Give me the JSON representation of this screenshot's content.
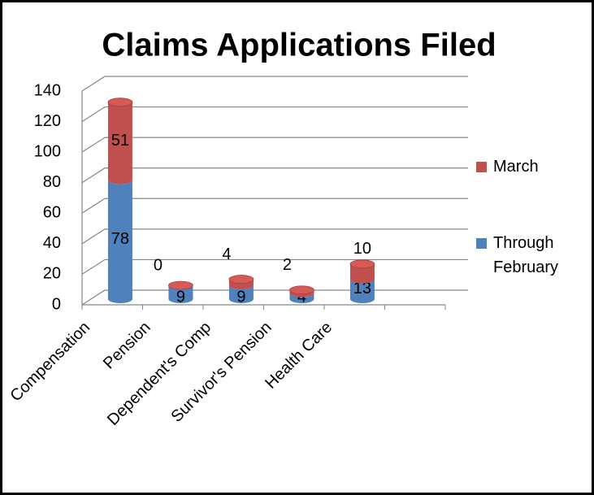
{
  "chart_data": {
    "type": "bar",
    "title": "Claims Applications Filed",
    "categories": [
      "Compensation",
      "Pension",
      "Dependent's Comp",
      "Survivor's Pension",
      "Health Care",
      null
    ],
    "series": [
      {
        "name": "Through February",
        "color": "#4f81bd",
        "values": [
          78,
          9,
          9,
          4,
          13,
          null
        ]
      },
      {
        "name": "March",
        "color": "#c0504d",
        "values": [
          51,
          0,
          4,
          2,
          10,
          null
        ]
      }
    ],
    "stacked": true,
    "ylim": [
      0,
      140
    ],
    "yticks": [
      0,
      20,
      40,
      60,
      80,
      100,
      120,
      140
    ],
    "grid": true,
    "legend": "right"
  }
}
